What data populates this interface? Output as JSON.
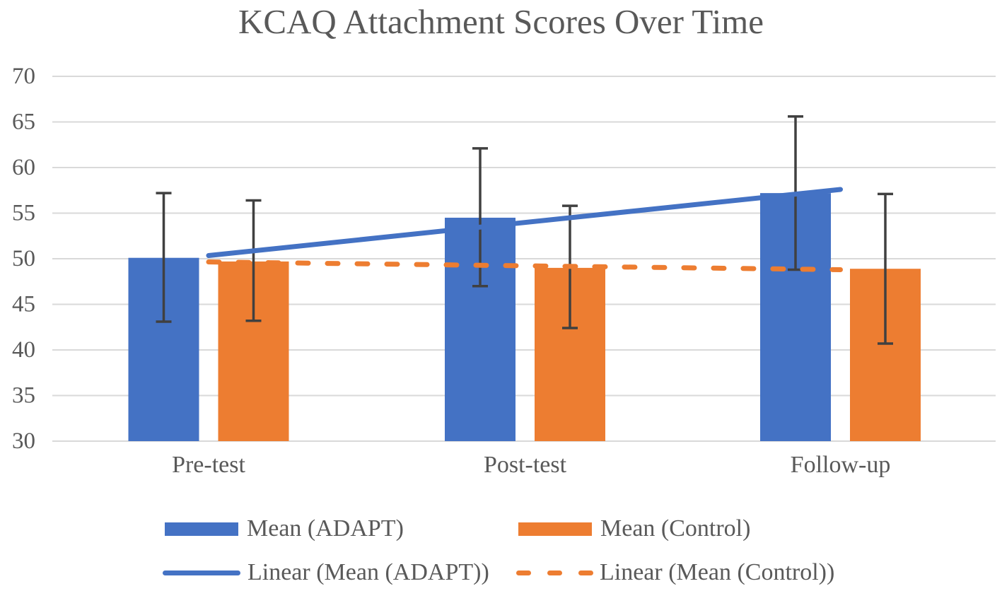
{
  "title": "KCAQ Attachment Scores Over Time",
  "colors": {
    "adapt": "#4472C4",
    "control": "#ED7D31",
    "text": "#595959",
    "gridline": "#D9D9D9",
    "error_bar": "#404040",
    "background": "#FFFFFF"
  },
  "chart_data": {
    "type": "bar",
    "title": "KCAQ Attachment Scores Over Time",
    "categories": [
      "Pre-test",
      "Post-test",
      "Follow-up"
    ],
    "series": [
      {
        "name": "Mean (ADAPT)",
        "color": "#4472C4",
        "values": [
          50.1,
          54.5,
          57.2
        ],
        "error_low": [
          43.1,
          47.0,
          48.8
        ],
        "error_high": [
          57.2,
          62.1,
          65.6
        ]
      },
      {
        "name": "Mean (Control)",
        "color": "#ED7D31",
        "values": [
          49.7,
          49.0,
          48.9
        ],
        "error_low": [
          43.2,
          42.4,
          40.7
        ],
        "error_high": [
          56.4,
          55.8,
          57.1
        ]
      }
    ],
    "trendlines": [
      {
        "name": "Linear (Mean (ADAPT))",
        "color": "#4472C4",
        "style": "solid",
        "start": 50.35,
        "end": 57.6
      },
      {
        "name": "Linear (Mean (Control))",
        "color": "#ED7D31",
        "style": "dashed",
        "start": 49.65,
        "end": 48.8
      }
    ],
    "xlabel": "",
    "ylabel": "",
    "ylim": [
      30,
      70
    ],
    "yticks": [
      30,
      35,
      40,
      45,
      50,
      55,
      60,
      65,
      70
    ],
    "grid": true,
    "legend_position": "bottom"
  }
}
